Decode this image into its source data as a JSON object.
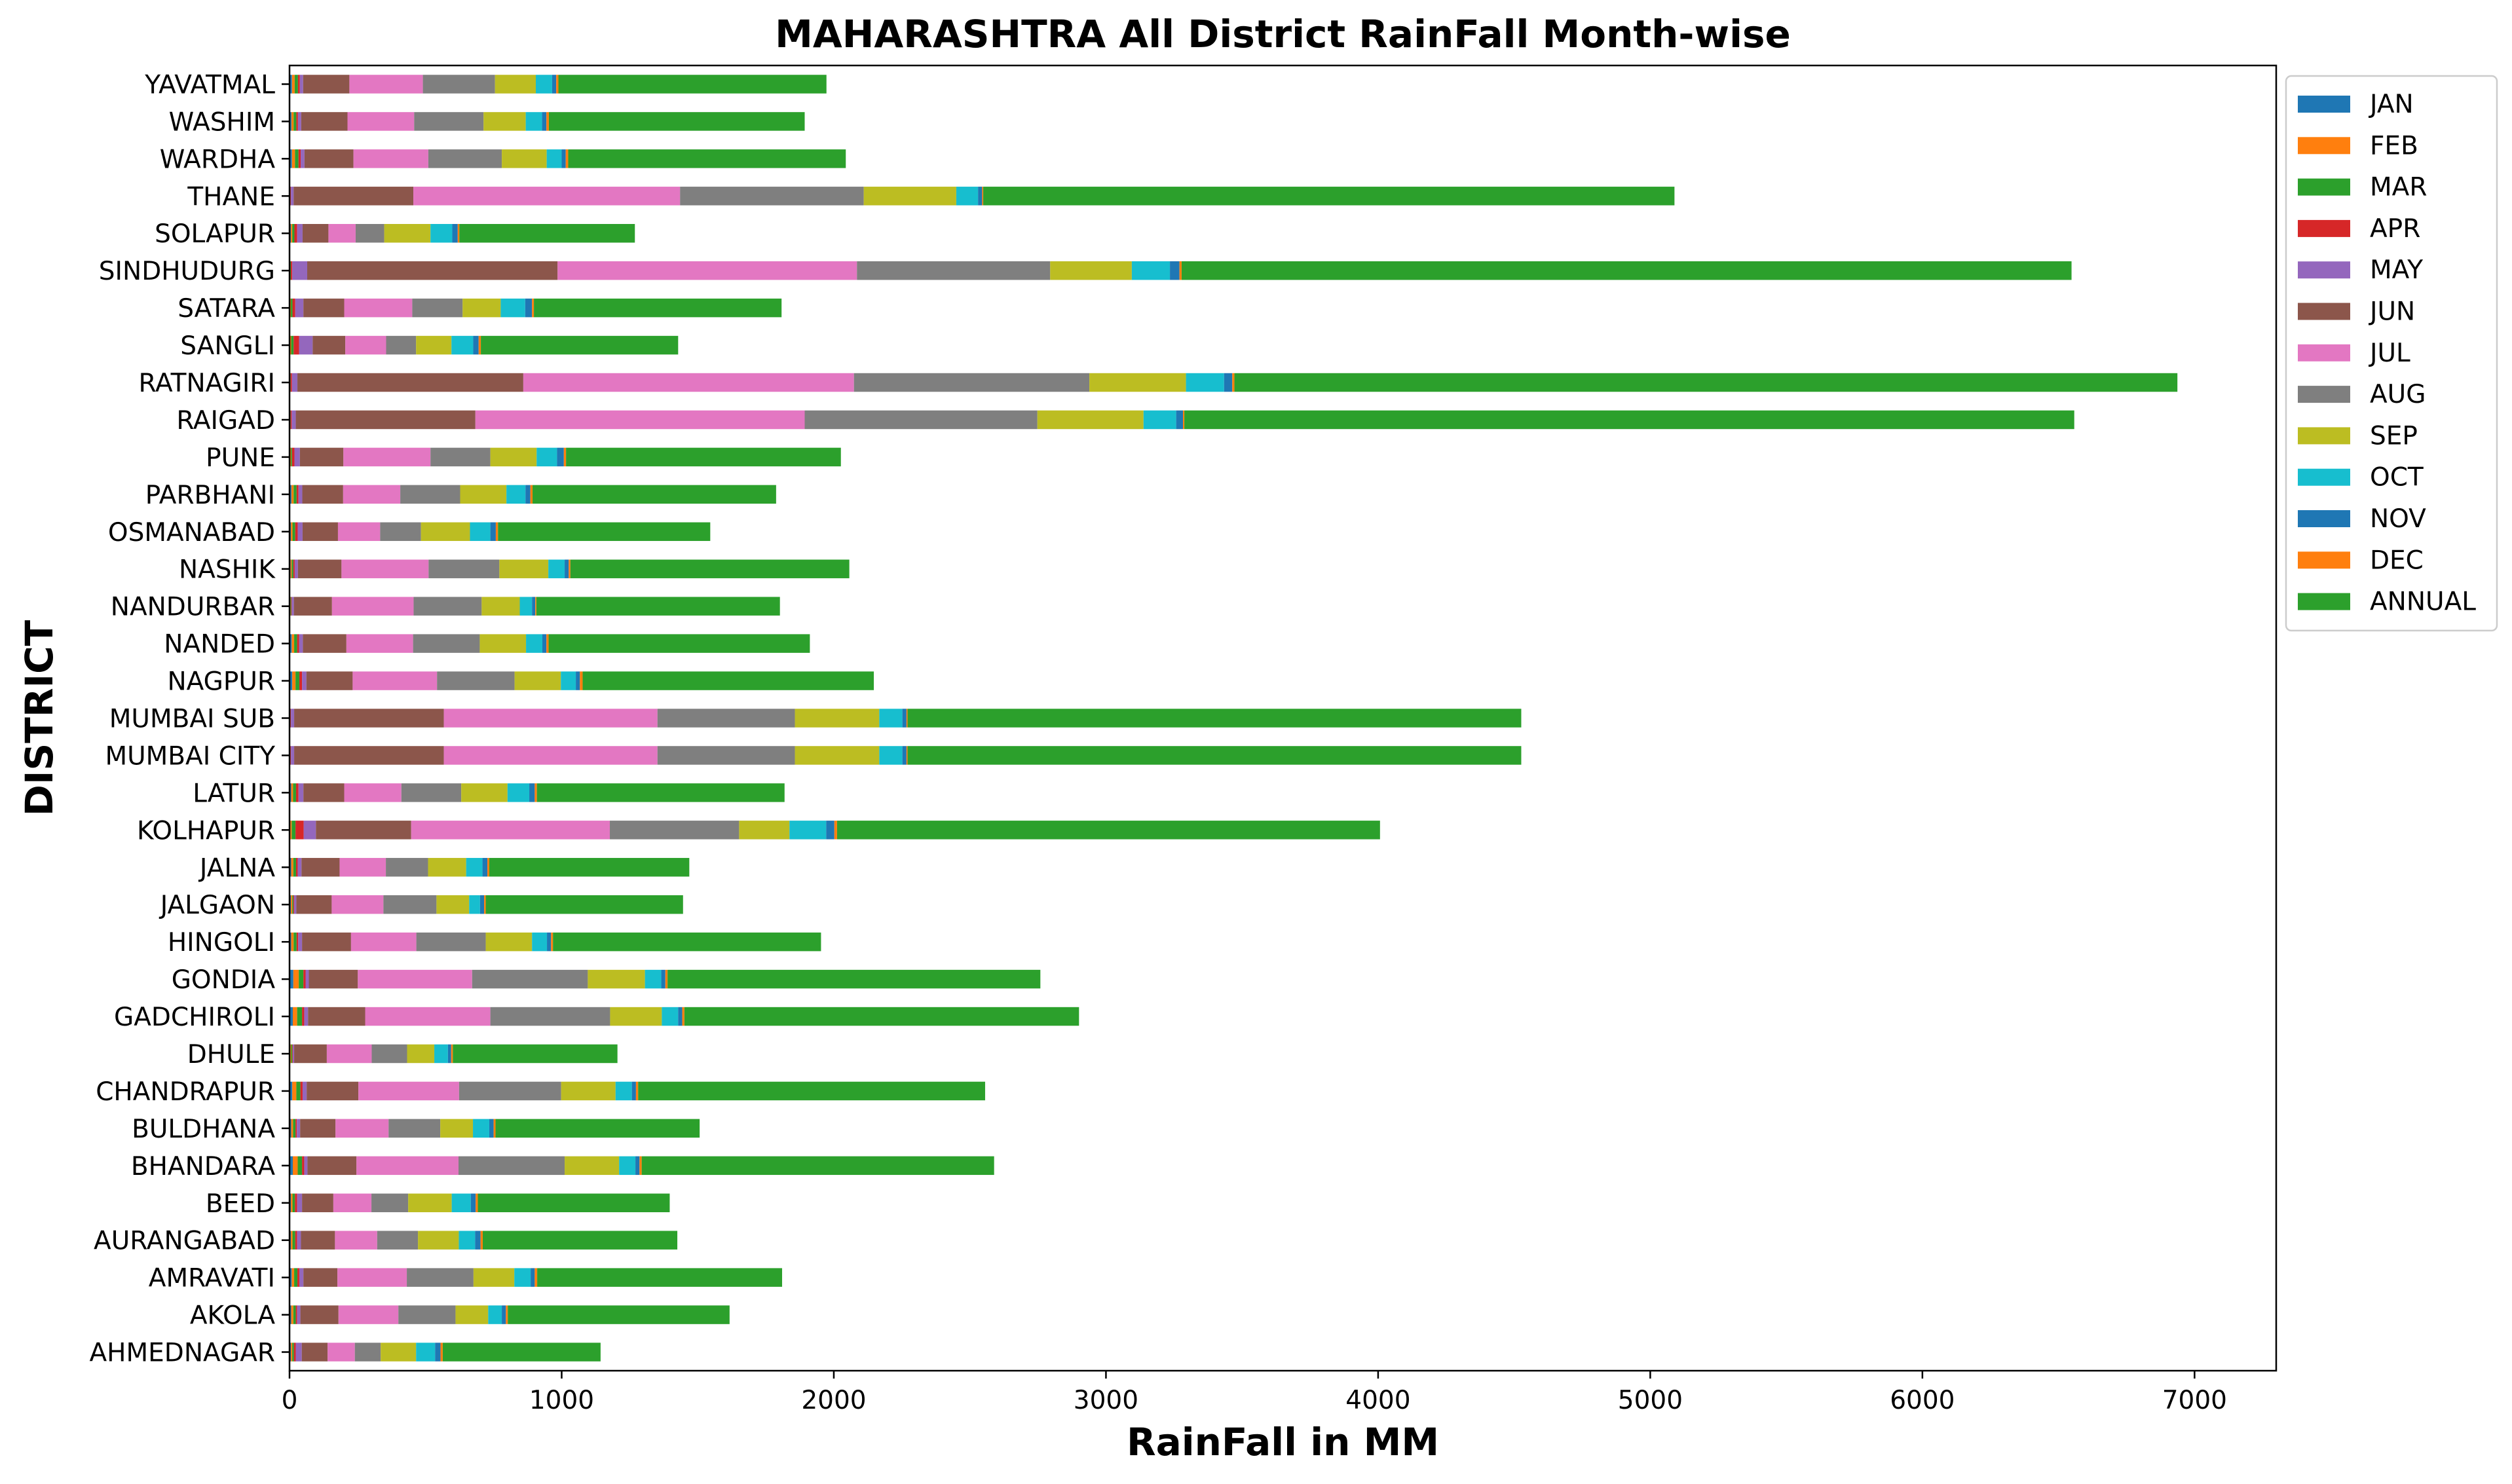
{
  "chart_data": {
    "type": "bar",
    "orientation": "horizontal",
    "stacked": true,
    "title": "MAHARASHTRA All District RainFall Month-wise",
    "xlabel": "RainFall in MM",
    "ylabel": "DISTRICT",
    "xlim": [
      0,
      7300
    ],
    "xticks": [
      0,
      1000,
      2000,
      3000,
      4000,
      5000,
      6000,
      7000
    ],
    "grid": false,
    "legend_position": "outside-top-right",
    "categories": [
      "AHMEDNAGAR",
      "AKOLA",
      "AMRAVATI",
      "AURANGABAD",
      "BEED",
      "BHANDARA",
      "BULDHANA",
      "CHANDRAPUR",
      "DHULE",
      "GADCHIROLI",
      "GONDIA",
      "HINGOLI",
      "JALGAON",
      "JALNA",
      "KOLHAPUR",
      "LATUR",
      "MUMBAI CITY",
      "MUMBAI SUB",
      "NAGPUR",
      "NANDED",
      "NANDURBAR",
      "NASHIK",
      "OSMANABAD",
      "PARBHANI",
      "PUNE",
      "RAIGAD",
      "RATNAGIRI",
      "SANGLI",
      "SATARA",
      "SINDHUDURG",
      "SOLAPUR",
      "THANE",
      "WARDHA",
      "WASHIM",
      "YAVATMAL"
    ],
    "series": [
      {
        "name": "JAN",
        "color": "#1f77b4",
        "values": [
          5,
          6,
          8,
          5,
          5,
          12,
          6,
          10,
          3,
          12,
          14,
          6,
          5,
          6,
          3,
          6,
          1,
          1,
          10,
          8,
          2,
          4,
          5,
          7,
          2,
          1,
          1,
          2,
          2,
          1,
          5,
          1,
          9,
          7,
          9
        ]
      },
      {
        "name": "FEB",
        "color": "#ff7f0e",
        "values": [
          5,
          8,
          9,
          6,
          6,
          18,
          7,
          15,
          3,
          16,
          20,
          9,
          5,
          8,
          5,
          7,
          1,
          1,
          12,
          9,
          2,
          4,
          6,
          8,
          3,
          1,
          1,
          4,
          3,
          1,
          5,
          1,
          11,
          8,
          10
        ]
      },
      {
        "name": "MAR",
        "color": "#2ca02c",
        "values": [
          6,
          9,
          12,
          10,
          9,
          16,
          9,
          15,
          4,
          18,
          17,
          11,
          4,
          10,
          14,
          11,
          1,
          1,
          14,
          11,
          2,
          6,
          10,
          11,
          4,
          2,
          2,
          9,
          6,
          3,
          8,
          1,
          13,
          10,
          12
        ]
      },
      {
        "name": "APR",
        "color": "#d62728",
        "values": [
          7,
          5,
          7,
          7,
          8,
          8,
          5,
          8,
          2,
          8,
          8,
          6,
          3,
          6,
          30,
          9,
          2,
          2,
          10,
          7,
          2,
          5,
          9,
          7,
          9,
          4,
          5,
          20,
          10,
          5,
          10,
          2,
          8,
          6,
          7
        ]
      },
      {
        "name": "MAY",
        "color": "#9467bd",
        "values": [
          22,
          12,
          15,
          14,
          18,
          12,
          12,
          15,
          5,
          14,
          12,
          14,
          8,
          14,
          45,
          18,
          12,
          12,
          16,
          14,
          8,
          12,
          18,
          14,
          20,
          15,
          20,
          50,
          30,
          55,
          20,
          10,
          14,
          12,
          12
        ]
      },
      {
        "name": "JUN",
        "color": "#8c564b",
        "values": [
          95,
          140,
          125,
          125,
          115,
          180,
          130,
          190,
          120,
          210,
          180,
          180,
          130,
          140,
          350,
          150,
          550,
          550,
          170,
          160,
          140,
          160,
          130,
          150,
          160,
          660,
          830,
          120,
          150,
          920,
          95,
          440,
          180,
          170,
          170
        ]
      },
      {
        "name": "JUL",
        "color": "#e377c2",
        "values": [
          100,
          220,
          255,
          155,
          140,
          375,
          195,
          370,
          165,
          460,
          420,
          240,
          190,
          170,
          730,
          210,
          785,
          785,
          310,
          245,
          300,
          320,
          155,
          210,
          320,
          1210,
          1215,
          150,
          250,
          1100,
          100,
          980,
          275,
          245,
          270
        ]
      },
      {
        "name": "AUG",
        "color": "#7f7f7f",
        "values": [
          95,
          210,
          245,
          150,
          135,
          390,
          190,
          375,
          130,
          440,
          425,
          255,
          195,
          155,
          475,
          220,
          505,
          505,
          285,
          245,
          250,
          260,
          150,
          220,
          220,
          855,
          865,
          110,
          185,
          710,
          105,
          675,
          270,
          255,
          265
        ]
      },
      {
        "name": "SEP",
        "color": "#bcbd22",
        "values": [
          130,
          120,
          150,
          150,
          160,
          200,
          120,
          200,
          100,
          190,
          210,
          170,
          120,
          140,
          185,
          170,
          310,
          310,
          170,
          170,
          140,
          180,
          180,
          170,
          170,
          390,
          355,
          130,
          140,
          300,
          170,
          340,
          165,
          155,
          150
        ]
      },
      {
        "name": "OCT",
        "color": "#17becf",
        "values": [
          70,
          50,
          60,
          60,
          70,
          60,
          60,
          60,
          50,
          60,
          60,
          55,
          40,
          60,
          135,
          80,
          85,
          85,
          55,
          60,
          45,
          60,
          75,
          70,
          75,
          120,
          140,
          80,
          90,
          140,
          80,
          80,
          55,
          60,
          60
        ]
      },
      {
        "name": "NOV",
        "color": "#1f77b4",
        "values": [
          20,
          15,
          15,
          20,
          18,
          15,
          16,
          15,
          12,
          15,
          15,
          15,
          15,
          18,
          30,
          20,
          15,
          15,
          15,
          15,
          12,
          15,
          20,
          18,
          25,
          25,
          30,
          20,
          25,
          35,
          20,
          15,
          15,
          16,
          15
        ]
      },
      {
        "name": "DEC",
        "color": "#ff7f0e",
        "values": [
          8,
          7,
          9,
          8,
          8,
          8,
          7,
          8,
          6,
          8,
          8,
          7,
          6,
          7,
          10,
          8,
          4,
          4,
          10,
          8,
          4,
          6,
          8,
          8,
          8,
          5,
          8,
          8,
          7,
          8,
          6,
          4,
          9,
          9,
          8
        ]
      },
      {
        "name": "ANNUAL",
        "color": "#2ca02c",
        "values": [
          580,
          815,
          900,
          715,
          705,
          1295,
          750,
          1275,
          605,
          1450,
          1370,
          985,
          725,
          735,
          1995,
          910,
          2255,
          2255,
          1070,
          960,
          895,
          1025,
          780,
          895,
          1010,
          3270,
          3465,
          725,
          910,
          3270,
          645,
          2540,
          1020,
          940,
          985
        ]
      }
    ]
  }
}
